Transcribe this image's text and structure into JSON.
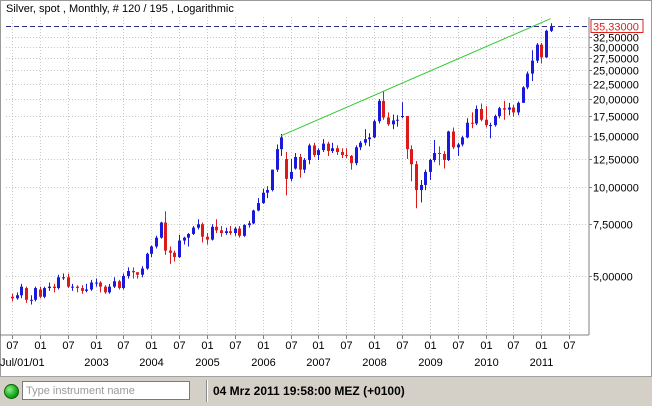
{
  "header": {
    "title": "Silver, spot , Monthly, # 120 / 195 , Logarithmic"
  },
  "statusbar": {
    "input_placeholder": "Type instrument name",
    "timestamp": "04 Mrz 2011 19:58:00  MEZ (+0100)"
  },
  "colors": {
    "up": "#1a1adc",
    "down": "#dc1a1a",
    "trendline": "#33cc33",
    "last_price_line": "#2a2a8a",
    "last_price_box": "#e02020"
  },
  "chart_data": {
    "type": "candlestick",
    "scale": "logarithmic",
    "grid": true,
    "ylim": [
      3.2,
      38
    ],
    "y_ticks": [
      {
        "value": 32.5,
        "label": "32,50000"
      },
      {
        "value": 30,
        "label": "30,00000"
      },
      {
        "value": 27.5,
        "label": "27,50000"
      },
      {
        "value": 25,
        "label": "25,00000"
      },
      {
        "value": 22.5,
        "label": "22,50000"
      },
      {
        "value": 20,
        "label": "20,00000"
      },
      {
        "value": 17.5,
        "label": "17,50000"
      },
      {
        "value": 15,
        "label": "15,00000"
      },
      {
        "value": 12.5,
        "label": "12,50000"
      },
      {
        "value": 10,
        "label": "10,00000"
      },
      {
        "value": 7.5,
        "label": "7,50000"
      },
      {
        "value": 5,
        "label": "5,00000"
      }
    ],
    "last_price": {
      "value": 35.33,
      "label": "35,33000"
    },
    "x_start": "2001-07",
    "x_end": "2011-10",
    "x_ticks_top": [
      {
        "date": "2001-07",
        "label": "07"
      },
      {
        "date": "2002-01",
        "label": "01"
      },
      {
        "date": "2002-07",
        "label": "07"
      },
      {
        "date": "2003-01",
        "label": "01"
      },
      {
        "date": "2003-07",
        "label": "07"
      },
      {
        "date": "2004-01",
        "label": "01"
      },
      {
        "date": "2004-07",
        "label": "07"
      },
      {
        "date": "2005-01",
        "label": "01"
      },
      {
        "date": "2005-07",
        "label": "07"
      },
      {
        "date": "2006-01",
        "label": "01"
      },
      {
        "date": "2006-07",
        "label": "07"
      },
      {
        "date": "2007-01",
        "label": "01"
      },
      {
        "date": "2007-07",
        "label": "07"
      },
      {
        "date": "2008-01",
        "label": "01"
      },
      {
        "date": "2008-07",
        "label": "07"
      },
      {
        "date": "2009-01",
        "label": "01"
      },
      {
        "date": "2009-07",
        "label": "07"
      },
      {
        "date": "2010-01",
        "label": "01"
      },
      {
        "date": "2010-07",
        "label": "07"
      },
      {
        "date": "2011-01",
        "label": "01"
      },
      {
        "date": "2011-07",
        "label": "07"
      }
    ],
    "x_ticks_bottom": [
      {
        "date": "2001-07",
        "label": "Jul/01/01"
      },
      {
        "date": "2003-01",
        "label": "2003"
      },
      {
        "date": "2004-01",
        "label": "2004"
      },
      {
        "date": "2005-01",
        "label": "2005"
      },
      {
        "date": "2006-01",
        "label": "2006"
      },
      {
        "date": "2007-01",
        "label": "2007"
      },
      {
        "date": "2008-01",
        "label": "2008"
      },
      {
        "date": "2009-01",
        "label": "2009"
      },
      {
        "date": "2010-01",
        "label": "2010"
      },
      {
        "date": "2011-01",
        "label": "2011"
      }
    ],
    "trendline": {
      "from": [
        "2006-05",
        15.0
      ],
      "to": [
        "2011-03",
        37.5
      ]
    },
    "candles": [
      {
        "d": "2001-07",
        "o": 4.25,
        "h": 4.35,
        "l": 4.1,
        "c": 4.2
      },
      {
        "d": "2001-08",
        "o": 4.2,
        "h": 4.4,
        "l": 4.15,
        "c": 4.3
      },
      {
        "d": "2001-09",
        "o": 4.3,
        "h": 4.7,
        "l": 4.2,
        "c": 4.6
      },
      {
        "d": "2001-10",
        "o": 4.55,
        "h": 4.6,
        "l": 4.05,
        "c": 4.15
      },
      {
        "d": "2001-11",
        "o": 4.15,
        "h": 4.3,
        "l": 4.0,
        "c": 4.15
      },
      {
        "d": "2001-12",
        "o": 4.15,
        "h": 4.6,
        "l": 4.1,
        "c": 4.55
      },
      {
        "d": "2002-01",
        "o": 4.5,
        "h": 4.6,
        "l": 4.2,
        "c": 4.25
      },
      {
        "d": "2002-02",
        "o": 4.25,
        "h": 4.6,
        "l": 4.2,
        "c": 4.55
      },
      {
        "d": "2002-03",
        "o": 4.55,
        "h": 4.75,
        "l": 4.45,
        "c": 4.6
      },
      {
        "d": "2002-04",
        "o": 4.6,
        "h": 4.7,
        "l": 4.4,
        "c": 4.55
      },
      {
        "d": "2002-05",
        "o": 4.55,
        "h": 5.05,
        "l": 4.5,
        "c": 4.95
      },
      {
        "d": "2002-06",
        "o": 4.95,
        "h": 5.1,
        "l": 4.85,
        "c": 4.95
      },
      {
        "d": "2002-07",
        "o": 4.95,
        "h": 5.1,
        "l": 4.55,
        "c": 4.6
      },
      {
        "d": "2002-08",
        "o": 4.6,
        "h": 4.7,
        "l": 4.45,
        "c": 4.6
      },
      {
        "d": "2002-09",
        "o": 4.6,
        "h": 4.65,
        "l": 4.4,
        "c": 4.55
      },
      {
        "d": "2002-10",
        "o": 4.55,
        "h": 4.65,
        "l": 4.35,
        "c": 4.45
      },
      {
        "d": "2002-11",
        "o": 4.45,
        "h": 4.7,
        "l": 4.4,
        "c": 4.5
      },
      {
        "d": "2002-12",
        "o": 4.5,
        "h": 4.85,
        "l": 4.45,
        "c": 4.75
      },
      {
        "d": "2003-01",
        "o": 4.75,
        "h": 4.9,
        "l": 4.6,
        "c": 4.75
      },
      {
        "d": "2003-02",
        "o": 4.75,
        "h": 4.8,
        "l": 4.4,
        "c": 4.6
      },
      {
        "d": "2003-03",
        "o": 4.6,
        "h": 4.65,
        "l": 4.35,
        "c": 4.4
      },
      {
        "d": "2003-04",
        "o": 4.4,
        "h": 4.7,
        "l": 4.35,
        "c": 4.6
      },
      {
        "d": "2003-05",
        "o": 4.6,
        "h": 4.95,
        "l": 4.55,
        "c": 4.8
      },
      {
        "d": "2003-06",
        "o": 4.8,
        "h": 4.85,
        "l": 4.5,
        "c": 4.55
      },
      {
        "d": "2003-07",
        "o": 4.55,
        "h": 5.1,
        "l": 4.5,
        "c": 5.0
      },
      {
        "d": "2003-08",
        "o": 5.0,
        "h": 5.35,
        "l": 4.9,
        "c": 5.2
      },
      {
        "d": "2003-09",
        "o": 5.2,
        "h": 5.35,
        "l": 4.9,
        "c": 5.15
      },
      {
        "d": "2003-10",
        "o": 5.15,
        "h": 5.15,
        "l": 4.9,
        "c": 5.05
      },
      {
        "d": "2003-11",
        "o": 5.05,
        "h": 5.4,
        "l": 4.95,
        "c": 5.3
      },
      {
        "d": "2003-12",
        "o": 5.3,
        "h": 6.0,
        "l": 5.25,
        "c": 5.95
      },
      {
        "d": "2004-01",
        "o": 5.95,
        "h": 6.35,
        "l": 5.8,
        "c": 6.3
      },
      {
        "d": "2004-02",
        "o": 6.3,
        "h": 6.85,
        "l": 6.2,
        "c": 6.75
      },
      {
        "d": "2004-03",
        "o": 6.75,
        "h": 7.65,
        "l": 6.7,
        "c": 7.6
      },
      {
        "d": "2004-04",
        "o": 7.6,
        "h": 8.3,
        "l": 5.9,
        "c": 6.1
      },
      {
        "d": "2004-05",
        "o": 6.1,
        "h": 6.3,
        "l": 5.5,
        "c": 6.0
      },
      {
        "d": "2004-06",
        "o": 6.0,
        "h": 6.1,
        "l": 5.6,
        "c": 5.8
      },
      {
        "d": "2004-07",
        "o": 5.8,
        "h": 6.9,
        "l": 5.75,
        "c": 6.6
      },
      {
        "d": "2004-08",
        "o": 6.6,
        "h": 6.8,
        "l": 6.4,
        "c": 6.75
      },
      {
        "d": "2004-09",
        "o": 6.75,
        "h": 7.0,
        "l": 6.3,
        "c": 6.95
      },
      {
        "d": "2004-10",
        "o": 6.95,
        "h": 7.4,
        "l": 6.9,
        "c": 7.3
      },
      {
        "d": "2004-11",
        "o": 7.3,
        "h": 7.8,
        "l": 7.2,
        "c": 7.5
      },
      {
        "d": "2004-12",
        "o": 7.5,
        "h": 7.6,
        "l": 6.5,
        "c": 6.8
      },
      {
        "d": "2005-01",
        "o": 6.8,
        "h": 7.0,
        "l": 6.4,
        "c": 6.65
      },
      {
        "d": "2005-02",
        "o": 6.65,
        "h": 7.5,
        "l": 6.6,
        "c": 7.35
      },
      {
        "d": "2005-03",
        "o": 7.35,
        "h": 7.8,
        "l": 7.0,
        "c": 7.15
      },
      {
        "d": "2005-04",
        "o": 7.15,
        "h": 7.4,
        "l": 6.8,
        "c": 7.0
      },
      {
        "d": "2005-05",
        "o": 7.0,
        "h": 7.3,
        "l": 6.9,
        "c": 7.1
      },
      {
        "d": "2005-06",
        "o": 7.1,
        "h": 7.4,
        "l": 6.9,
        "c": 7.0
      },
      {
        "d": "2005-07",
        "o": 7.0,
        "h": 7.35,
        "l": 6.85,
        "c": 7.25
      },
      {
        "d": "2005-08",
        "o": 7.25,
        "h": 7.4,
        "l": 6.75,
        "c": 6.85
      },
      {
        "d": "2005-09",
        "o": 6.85,
        "h": 7.5,
        "l": 6.8,
        "c": 7.45
      },
      {
        "d": "2005-10",
        "o": 7.45,
        "h": 7.7,
        "l": 7.3,
        "c": 7.55
      },
      {
        "d": "2005-11",
        "o": 7.55,
        "h": 8.4,
        "l": 7.5,
        "c": 8.35
      },
      {
        "d": "2005-12",
        "o": 8.35,
        "h": 9.2,
        "l": 8.3,
        "c": 8.85
      },
      {
        "d": "2006-01",
        "o": 8.85,
        "h": 9.9,
        "l": 8.8,
        "c": 9.6
      },
      {
        "d": "2006-02",
        "o": 9.6,
        "h": 10.1,
        "l": 9.2,
        "c": 9.8
      },
      {
        "d": "2006-03",
        "o": 9.8,
        "h": 11.5,
        "l": 9.7,
        "c": 11.5
      },
      {
        "d": "2006-04",
        "o": 11.5,
        "h": 14.0,
        "l": 11.3,
        "c": 13.5
      },
      {
        "d": "2006-05",
        "o": 13.5,
        "h": 15.2,
        "l": 12.8,
        "c": 14.8
      },
      {
        "d": "2006-06",
        "o": 12.5,
        "h": 13.2,
        "l": 9.4,
        "c": 10.7
      },
      {
        "d": "2006-07",
        "o": 10.7,
        "h": 12.5,
        "l": 10.5,
        "c": 11.3
      },
      {
        "d": "2006-08",
        "o": 11.6,
        "h": 13.1,
        "l": 11.5,
        "c": 12.7
      },
      {
        "d": "2006-09",
        "o": 12.7,
        "h": 13.0,
        "l": 10.8,
        "c": 11.5
      },
      {
        "d": "2006-10",
        "o": 11.5,
        "h": 12.6,
        "l": 11.2,
        "c": 12.4
      },
      {
        "d": "2006-11",
        "o": 12.4,
        "h": 14.1,
        "l": 12.0,
        "c": 13.9
      },
      {
        "d": "2006-12",
        "o": 13.9,
        "h": 14.2,
        "l": 12.7,
        "c": 12.9
      },
      {
        "d": "2007-01",
        "o": 12.9,
        "h": 13.6,
        "l": 12.4,
        "c": 13.4
      },
      {
        "d": "2007-02",
        "o": 13.4,
        "h": 14.6,
        "l": 13.2,
        "c": 14.1
      },
      {
        "d": "2007-03",
        "o": 14.1,
        "h": 14.3,
        "l": 12.8,
        "c": 13.3
      },
      {
        "d": "2007-04",
        "o": 13.3,
        "h": 14.2,
        "l": 13.1,
        "c": 13.6
      },
      {
        "d": "2007-05",
        "o": 13.6,
        "h": 13.9,
        "l": 12.9,
        "c": 13.2
      },
      {
        "d": "2007-06",
        "o": 13.2,
        "h": 13.6,
        "l": 12.6,
        "c": 12.9
      },
      {
        "d": "2007-07",
        "o": 12.9,
        "h": 13.6,
        "l": 12.6,
        "c": 12.8
      },
      {
        "d": "2007-08",
        "o": 12.8,
        "h": 12.9,
        "l": 11.5,
        "c": 12.1
      },
      {
        "d": "2007-09",
        "o": 12.1,
        "h": 13.9,
        "l": 11.9,
        "c": 13.7
      },
      {
        "d": "2007-10",
        "o": 13.7,
        "h": 14.4,
        "l": 13.4,
        "c": 14.2
      },
      {
        "d": "2007-11",
        "o": 14.2,
        "h": 15.8,
        "l": 13.9,
        "c": 14.6
      },
      {
        "d": "2007-12",
        "o": 14.6,
        "h": 15.3,
        "l": 13.8,
        "c": 14.8
      },
      {
        "d": "2008-01",
        "o": 14.8,
        "h": 17.0,
        "l": 14.7,
        "c": 16.8
      },
      {
        "d": "2008-02",
        "o": 16.8,
        "h": 20.0,
        "l": 16.5,
        "c": 19.7
      },
      {
        "d": "2008-03",
        "o": 19.7,
        "h": 21.3,
        "l": 17.0,
        "c": 17.3
      },
      {
        "d": "2008-04",
        "o": 17.3,
        "h": 18.0,
        "l": 16.2,
        "c": 16.4
      },
      {
        "d": "2008-05",
        "o": 16.4,
        "h": 17.7,
        "l": 15.8,
        "c": 16.9
      },
      {
        "d": "2008-06",
        "o": 16.9,
        "h": 17.6,
        "l": 16.1,
        "c": 17.0
      },
      {
        "d": "2008-07",
        "o": 17.5,
        "h": 19.5,
        "l": 17.2,
        "c": 17.5
      },
      {
        "d": "2008-08",
        "o": 17.5,
        "h": 17.5,
        "l": 12.5,
        "c": 13.5
      },
      {
        "d": "2008-09",
        "o": 13.5,
        "h": 13.9,
        "l": 10.5,
        "c": 12.0
      },
      {
        "d": "2008-10",
        "o": 12.0,
        "h": 12.3,
        "l": 8.5,
        "c": 9.8
      },
      {
        "d": "2008-11",
        "o": 9.8,
        "h": 10.6,
        "l": 8.9,
        "c": 10.2
      },
      {
        "d": "2008-12",
        "o": 10.2,
        "h": 11.5,
        "l": 9.8,
        "c": 11.3
      },
      {
        "d": "2009-01",
        "o": 11.3,
        "h": 12.5,
        "l": 10.6,
        "c": 12.4
      },
      {
        "d": "2009-02",
        "o": 12.4,
        "h": 14.5,
        "l": 12.2,
        "c": 13.1
      },
      {
        "d": "2009-03",
        "o": 13.1,
        "h": 13.8,
        "l": 11.9,
        "c": 13.0
      },
      {
        "d": "2009-04",
        "o": 13.0,
        "h": 13.3,
        "l": 11.6,
        "c": 12.4
      },
      {
        "d": "2009-05",
        "o": 12.4,
        "h": 15.6,
        "l": 12.3,
        "c": 15.5
      },
      {
        "d": "2009-06",
        "o": 15.5,
        "h": 16.0,
        "l": 13.5,
        "c": 13.7
      },
      {
        "d": "2009-07",
        "o": 13.7,
        "h": 14.2,
        "l": 12.8,
        "c": 14.0
      },
      {
        "d": "2009-08",
        "o": 14.0,
        "h": 15.0,
        "l": 13.8,
        "c": 14.8
      },
      {
        "d": "2009-09",
        "o": 14.8,
        "h": 17.2,
        "l": 14.7,
        "c": 16.6
      },
      {
        "d": "2009-10",
        "o": 16.6,
        "h": 18.0,
        "l": 15.9,
        "c": 16.5
      },
      {
        "d": "2009-11",
        "o": 16.5,
        "h": 19.0,
        "l": 16.3,
        "c": 18.5
      },
      {
        "d": "2009-12",
        "o": 18.5,
        "h": 19.3,
        "l": 16.8,
        "c": 17.0
      },
      {
        "d": "2010-01",
        "o": 17.0,
        "h": 18.9,
        "l": 16.0,
        "c": 16.3
      },
      {
        "d": "2010-02",
        "o": 16.3,
        "h": 16.6,
        "l": 14.7,
        "c": 16.3
      },
      {
        "d": "2010-03",
        "o": 16.3,
        "h": 17.7,
        "l": 16.1,
        "c": 17.5
      },
      {
        "d": "2010-04",
        "o": 17.5,
        "h": 18.8,
        "l": 17.2,
        "c": 18.6
      },
      {
        "d": "2010-05",
        "o": 18.6,
        "h": 19.7,
        "l": 17.0,
        "c": 18.4
      },
      {
        "d": "2010-06",
        "o": 18.4,
        "h": 19.4,
        "l": 17.6,
        "c": 18.7
      },
      {
        "d": "2010-07",
        "o": 18.7,
        "h": 19.1,
        "l": 17.4,
        "c": 18.0
      },
      {
        "d": "2010-08",
        "o": 18.0,
        "h": 19.6,
        "l": 17.6,
        "c": 19.4
      },
      {
        "d": "2010-09",
        "o": 19.4,
        "h": 22.1,
        "l": 19.4,
        "c": 21.9
      },
      {
        "d": "2010-10",
        "o": 21.9,
        "h": 24.8,
        "l": 21.6,
        "c": 24.4
      },
      {
        "d": "2010-11",
        "o": 24.4,
        "h": 29.3,
        "l": 23.0,
        "c": 27.0
      },
      {
        "d": "2010-12",
        "o": 27.0,
        "h": 31.0,
        "l": 26.5,
        "c": 30.6
      },
      {
        "d": "2011-01",
        "o": 30.6,
        "h": 31.0,
        "l": 26.4,
        "c": 27.7
      },
      {
        "d": "2011-02",
        "o": 27.7,
        "h": 34.4,
        "l": 27.6,
        "c": 34.1
      },
      {
        "d": "2011-03",
        "o": 34.1,
        "h": 36.2,
        "l": 33.8,
        "c": 35.3
      }
    ]
  }
}
